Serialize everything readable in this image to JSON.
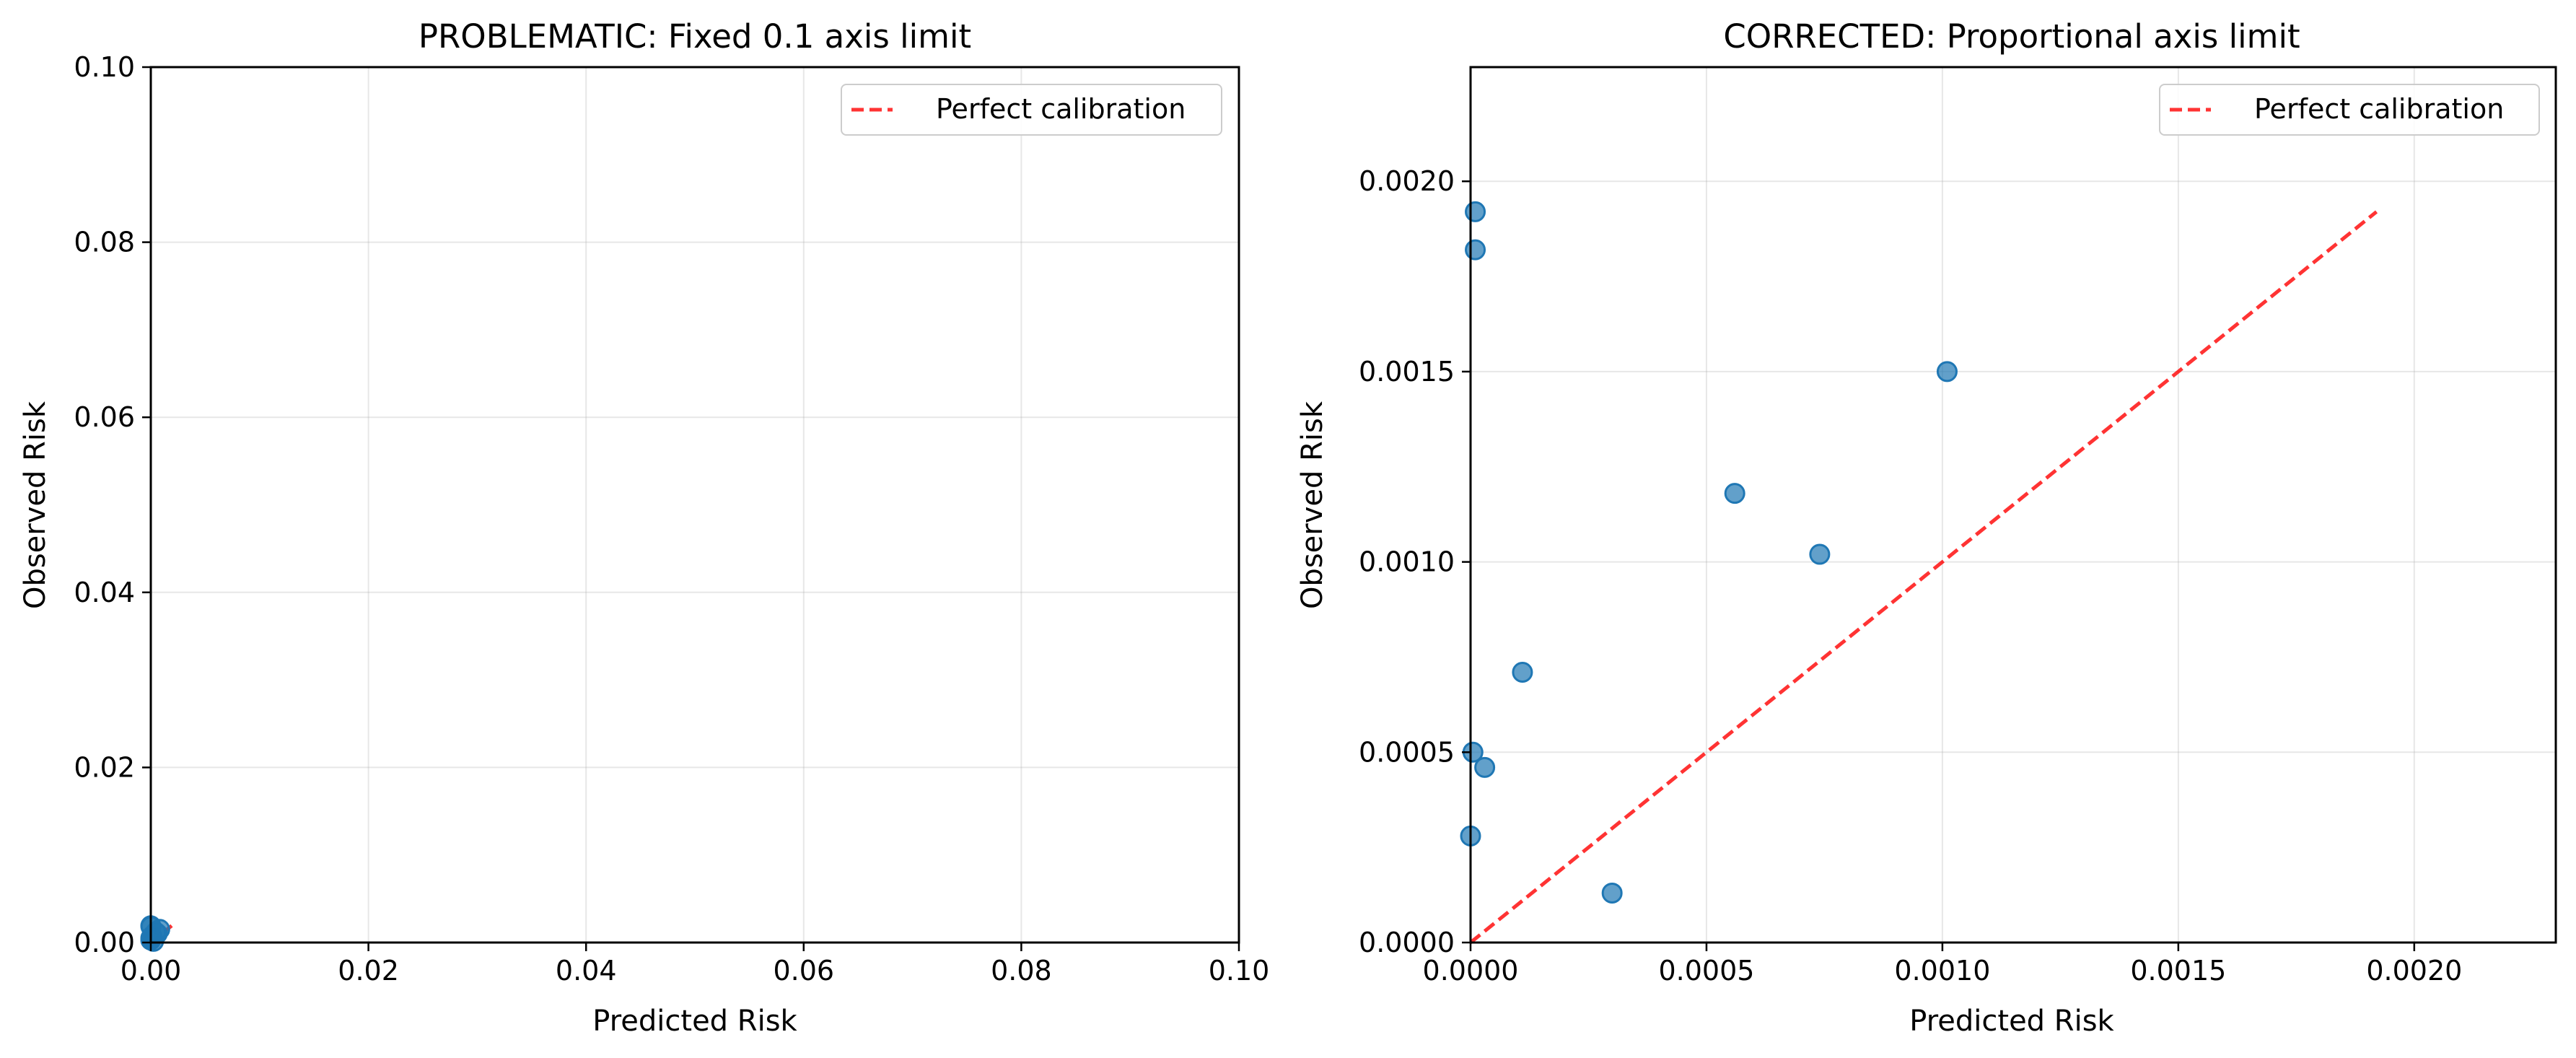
{
  "chart_data": [
    {
      "type": "scatter",
      "title": "PROBLEMATIC: Fixed 0.1 axis limit",
      "xlabel": "Predicted Risk",
      "ylabel": "Observed Risk",
      "xlim": [
        0,
        0.1
      ],
      "ylim": [
        0,
        0.1
      ],
      "xticks": [
        0,
        0.02,
        0.04,
        0.06,
        0.08,
        0.1
      ],
      "xtick_labels": [
        "0.00",
        "0.02",
        "0.04",
        "0.06",
        "0.08",
        "0.10"
      ],
      "yticks": [
        0,
        0.02,
        0.04,
        0.06,
        0.08,
        0.1
      ],
      "ytick_labels": [
        "0.00",
        "0.02",
        "0.04",
        "0.06",
        "0.08",
        "0.10"
      ],
      "grid": true,
      "legend_position": "top-right",
      "points": {
        "x": [
          0.0,
          1e-05,
          0.00082,
          0.00045,
          0.0006,
          9e-05,
          0.0,
          3e-05,
          0.0,
          0.00025
        ],
        "y": [
          0.00192,
          0.00182,
          0.0015,
          0.00118,
          0.00102,
          0.00071,
          0.0005,
          0.00046,
          0.00028,
          0.00013
        ],
        "color": "#1f77b4"
      },
      "reference_line": {
        "name": "Perfect calibration",
        "from": [
          0,
          0
        ],
        "to": [
          0.00192,
          0.00192
        ],
        "color": "#ff0000",
        "style": "dashed"
      }
    },
    {
      "type": "scatter",
      "title": "CORRECTED: Proportional axis limit",
      "xlabel": "Predicted Risk",
      "ylabel": "Observed Risk",
      "xlim": [
        0,
        0.0023
      ],
      "ylim": [
        0,
        0.0023
      ],
      "xticks": [
        0,
        0.0005,
        0.001,
        0.0015,
        0.002
      ],
      "xtick_labels": [
        "0.0000",
        "0.0005",
        "0.0010",
        "0.0015",
        "0.0020"
      ],
      "yticks": [
        0,
        0.0005,
        0.001,
        0.0015,
        0.002
      ],
      "ytick_labels": [
        "0.0000",
        "0.0005",
        "0.0010",
        "0.0015",
        "0.0020"
      ],
      "grid": true,
      "legend_position": "top-right",
      "points": {
        "x": [
          1e-05,
          1e-05,
          0.00101,
          0.00056,
          0.00074,
          0.00011,
          5e-06,
          3e-05,
          0.0,
          0.0003
        ],
        "y": [
          0.00192,
          0.00182,
          0.0015,
          0.00118,
          0.00102,
          0.00071,
          0.0005,
          0.00046,
          0.00028,
          0.00013
        ],
        "color": "#1f77b4"
      },
      "reference_line": {
        "name": "Perfect calibration",
        "from": [
          0,
          0
        ],
        "to": [
          0.00192,
          0.00192
        ],
        "color": "#ff0000",
        "style": "dashed"
      }
    }
  ]
}
